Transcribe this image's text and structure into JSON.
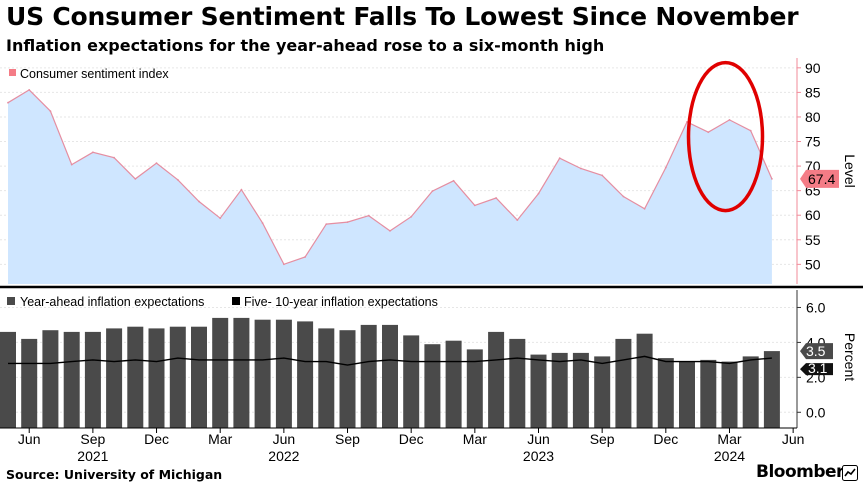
{
  "header": {
    "title": "US Consumer Sentiment Falls To Lowest Since November",
    "subtitle": "Inflation expectations for the year-ahead rose to a six-month high"
  },
  "footer": {
    "source": "Source: University of Michigan",
    "brand": "Bloomberg"
  },
  "colors": {
    "area_fill": "#cfe6ff",
    "sentiment_line": "#e58ea1",
    "bar": "#4a4a4a",
    "five_ten_line": "#000000",
    "highlight_circle": "#e00000",
    "last_value_marker": "#f47c86"
  },
  "chart_data": [
    {
      "type": "area",
      "title": "US Consumer Sentiment Falls To Lowest Since November",
      "legend": [
        "Consumer sentiment index"
      ],
      "ylabel": "Level",
      "ylim": [
        46,
        92
      ],
      "yticks": [
        50,
        55,
        60,
        65,
        70,
        75,
        80,
        85,
        90
      ],
      "last_value_label": "67.4",
      "x": [
        "2021-05",
        "2021-06",
        "2021-07",
        "2021-08",
        "2021-09",
        "2021-10",
        "2021-11",
        "2021-12",
        "2022-01",
        "2022-02",
        "2022-03",
        "2022-04",
        "2022-05",
        "2022-06",
        "2022-07",
        "2022-08",
        "2022-09",
        "2022-10",
        "2022-11",
        "2022-12",
        "2023-01",
        "2023-02",
        "2023-03",
        "2023-04",
        "2023-05",
        "2023-06",
        "2023-07",
        "2023-08",
        "2023-09",
        "2023-10",
        "2023-11",
        "2023-12",
        "2024-01",
        "2024-02",
        "2024-03",
        "2024-04",
        "2024-05"
      ],
      "series": [
        {
          "name": "Consumer sentiment index",
          "values": [
            82.9,
            85.5,
            81.2,
            70.3,
            72.8,
            71.7,
            67.4,
            70.6,
            67.2,
            62.8,
            59.4,
            65.2,
            58.4,
            50.0,
            51.5,
            58.2,
            58.6,
            59.9,
            56.8,
            59.7,
            64.9,
            67.0,
            62.0,
            63.5,
            59.0,
            64.4,
            71.6,
            69.5,
            68.1,
            63.8,
            61.3,
            69.7,
            79.0,
            76.9,
            79.4,
            77.2,
            67.4
          ]
        }
      ]
    },
    {
      "type": "bar",
      "title": "Inflation expectations",
      "legend": [
        "Year-ahead inflation expectations",
        "Five- 10-year inflation expectations"
      ],
      "ylabel": "Percent",
      "ylim": [
        -0.9,
        7.0
      ],
      "yticks": [
        0.0,
        2.0,
        4.0,
        6.0
      ],
      "ytick_labels": [
        "0.0",
        "2.0",
        "4.0",
        "6.0"
      ],
      "last_value_labels": [
        "3.5",
        "3.1"
      ],
      "x": [
        "2021-05",
        "2021-06",
        "2021-07",
        "2021-08",
        "2021-09",
        "2021-10",
        "2021-11",
        "2021-12",
        "2022-01",
        "2022-02",
        "2022-03",
        "2022-04",
        "2022-05",
        "2022-06",
        "2022-07",
        "2022-08",
        "2022-09",
        "2022-10",
        "2022-11",
        "2022-12",
        "2023-01",
        "2023-02",
        "2023-03",
        "2023-04",
        "2023-05",
        "2023-06",
        "2023-07",
        "2023-08",
        "2023-09",
        "2023-10",
        "2023-11",
        "2023-12",
        "2024-01",
        "2024-02",
        "2024-03",
        "2024-04",
        "2024-05"
      ],
      "series": [
        {
          "name": "Year-ahead inflation expectations",
          "kind": "bar",
          "values": [
            4.6,
            4.2,
            4.7,
            4.6,
            4.6,
            4.8,
            4.9,
            4.8,
            4.9,
            4.9,
            5.4,
            5.4,
            5.3,
            5.3,
            5.2,
            4.8,
            4.7,
            5.0,
            5.0,
            4.4,
            3.9,
            4.1,
            3.6,
            4.6,
            4.2,
            3.3,
            3.4,
            3.4,
            3.2,
            4.2,
            4.5,
            3.1,
            2.9,
            3.0,
            2.9,
            3.2,
            3.5
          ]
        },
        {
          "name": "Five- 10-year inflation expectations",
          "kind": "line",
          "values": [
            2.8,
            2.8,
            2.8,
            2.9,
            3.0,
            2.9,
            3.0,
            2.9,
            3.1,
            3.0,
            3.0,
            3.0,
            3.0,
            3.1,
            2.9,
            2.9,
            2.7,
            2.9,
            3.0,
            2.9,
            2.9,
            2.9,
            2.9,
            3.0,
            3.1,
            3.0,
            2.9,
            3.0,
            2.8,
            3.0,
            3.2,
            2.9,
            2.9,
            2.9,
            2.8,
            3.0,
            3.1
          ]
        }
      ]
    }
  ],
  "x_axis": {
    "month_ticks": [
      {
        "date": "2021-06",
        "label": "Jun"
      },
      {
        "date": "2021-09",
        "label": "Sep"
      },
      {
        "date": "2021-12",
        "label": "Dec"
      },
      {
        "date": "2022-03",
        "label": "Mar"
      },
      {
        "date": "2022-06",
        "label": "Jun"
      },
      {
        "date": "2022-09",
        "label": "Sep"
      },
      {
        "date": "2022-12",
        "label": "Dec"
      },
      {
        "date": "2023-03",
        "label": "Mar"
      },
      {
        "date": "2023-06",
        "label": "Jun"
      },
      {
        "date": "2023-09",
        "label": "Sep"
      },
      {
        "date": "2023-12",
        "label": "Dec"
      },
      {
        "date": "2024-03",
        "label": "Mar"
      },
      {
        "date": "2024-06",
        "label": "Jun"
      }
    ],
    "year_labels": [
      {
        "date": "2021-09",
        "label": "2021"
      },
      {
        "date": "2022-06",
        "label": "2022"
      },
      {
        "date": "2023-06",
        "label": "2023"
      },
      {
        "date": "2024-03",
        "label": "2024"
      }
    ]
  }
}
